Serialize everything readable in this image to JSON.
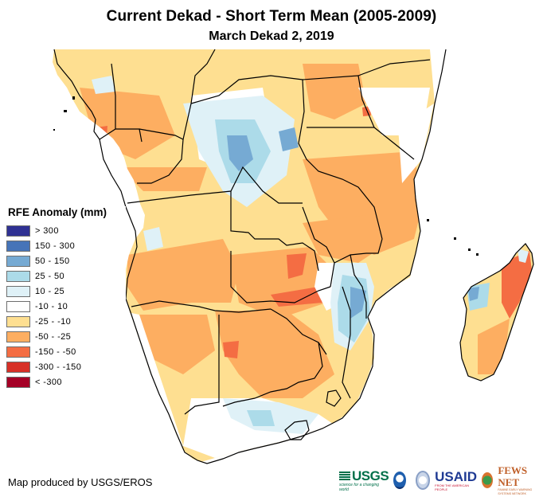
{
  "header": {
    "title": "Current Dekad - Short Term Mean (2005-2009)",
    "subtitle": "March Dekad 2, 2019"
  },
  "legend": {
    "title": "RFE Anomaly (mm)",
    "items": [
      {
        "label": "> 300",
        "color": "#2f3193"
      },
      {
        "label": "150 - 300",
        "color": "#4674b8"
      },
      {
        "label": "50 - 150",
        "color": "#76aad3"
      },
      {
        "label": "25 - 50",
        "color": "#acdbe9"
      },
      {
        "label": "10 - 25",
        "color": "#dff1f7"
      },
      {
        "label": "-10 - 10",
        "color": "#ffffff"
      },
      {
        "label": "-25 - -10",
        "color": "#fedf91"
      },
      {
        "label": "-50 - -25",
        "color": "#fdae61"
      },
      {
        "label": "-150 - -50",
        "color": "#f46d43"
      },
      {
        "label": "-300 - -150",
        "color": "#d73027"
      },
      {
        "label": "< -300",
        "color": "#a50026"
      }
    ]
  },
  "footer": {
    "credit": "Map produced by USGS/EROS",
    "logos": {
      "usgs": "USGS",
      "usgs_tagline": "science for a changing world",
      "noaa": "NOAA",
      "usaid": "USAID",
      "usaid_tagline": "FROM THE AMERICAN PEOPLE",
      "fews": "FEWS NET",
      "fews_tagline": "FAMINE EARLY WARNING SYSTEMS NETWORK"
    }
  },
  "map": {
    "region": "Southern and Central Africa",
    "variable": "RFE Anomaly (mm)"
  }
}
